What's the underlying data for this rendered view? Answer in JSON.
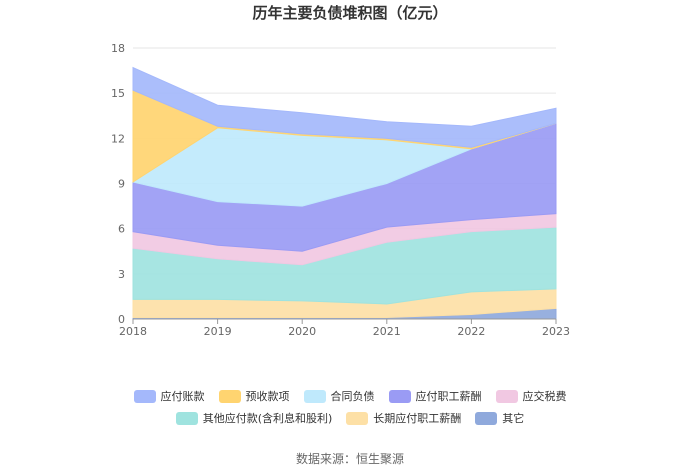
{
  "chart_data": {
    "type": "area",
    "stacked": true,
    "title": "历年主要负债堆积图（亿元）",
    "x": [
      "2018",
      "2019",
      "2020",
      "2021",
      "2022",
      "2023"
    ],
    "ylim": [
      0,
      18
    ],
    "yticks": [
      "0",
      "3",
      "6",
      "9",
      "12",
      "15",
      "18"
    ],
    "grid": true,
    "legend_position": "bottom",
    "series": [
      {
        "name": "其它",
        "color": "#8fa9dc",
        "values": [
          0.1,
          0.1,
          0.1,
          0.1,
          0.3,
          0.7
        ]
      },
      {
        "name": "长期应付职工薪酬",
        "color": "#fde0a6",
        "values": [
          1.2,
          1.2,
          1.1,
          0.9,
          1.5,
          1.3
        ]
      },
      {
        "name": "其他应付款(含利息和股利)",
        "color": "#9fe3df",
        "values": [
          3.4,
          2.7,
          2.4,
          4.1,
          4.0,
          4.1
        ]
      },
      {
        "name": "应交税费",
        "color": "#f1c8e2",
        "values": [
          1.1,
          0.9,
          0.9,
          1.0,
          0.8,
          0.9
        ]
      },
      {
        "name": "应付职工薪酬",
        "color": "#9a9bf4",
        "values": [
          3.3,
          2.9,
          3.0,
          2.9,
          4.7,
          6.0
        ]
      },
      {
        "name": "合同负债",
        "color": "#bfe9fc",
        "values": [
          0.0,
          4.9,
          4.7,
          2.9,
          0.0,
          0.0
        ]
      },
      {
        "name": "预收款项",
        "color": "#ffd470",
        "values": [
          6.1,
          0.1,
          0.1,
          0.1,
          0.1,
          0.0
        ]
      },
      {
        "name": "应付账款",
        "color": "#a4b8fb",
        "values": [
          1.5,
          1.4,
          1.4,
          1.1,
          1.4,
          1.0
        ]
      }
    ],
    "legend_order": [
      "应付账款",
      "预收款项",
      "合同负债",
      "应付职工薪酬",
      "应交税费",
      "其他应付款(含利息和股利)",
      "长期应付职工薪酬",
      "其它"
    ]
  },
  "source_text": "数据来源：恒生聚源"
}
